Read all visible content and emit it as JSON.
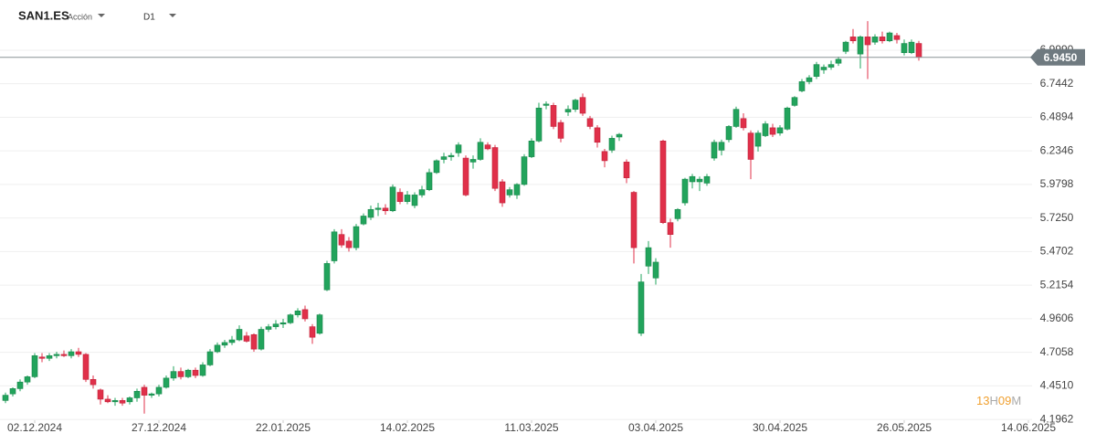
{
  "header": {
    "symbol": "SAN1.ES",
    "kind": "Acción",
    "timeframe": "D1"
  },
  "countdown": {
    "hours": "13",
    "h": "H",
    "minutes": "09",
    "m": "M"
  },
  "chart_data": {
    "type": "candlestick",
    "up_color": "#22a45c",
    "down_color": "#e0304a",
    "grid": true,
    "ylim": [
      4.19,
      7.38
    ],
    "yticks": [
      4.1962,
      {
        "value": 4.451,
        "label": "4.4510"
      },
      4.7058,
      4.9606,
      5.2154,
      5.4702,
      {
        "value": 5.725,
        "label": "5.7250"
      },
      5.9798,
      6.2346,
      6.4894,
      6.7442,
      {
        "value": 6.999,
        "label": "6.9990"
      }
    ],
    "xlim": [
      -0.75,
      140.5
    ],
    "xticks": [
      {
        "value": 4,
        "label": "02.12.2024"
      },
      {
        "value": 21,
        "label": "27.12.2024"
      },
      {
        "value": 38,
        "label": "22.01.2025"
      },
      {
        "value": 55,
        "label": "14.02.2025"
      },
      {
        "value": 72,
        "label": "11.03.2025"
      },
      {
        "value": 89,
        "label": "03.04.2025"
      },
      {
        "value": 106,
        "label": "30.04.2025"
      },
      {
        "value": 123,
        "label": "26.05.2025"
      },
      {
        "value": 140,
        "label": "14.06.2025"
      }
    ],
    "last_price": {
      "value": 6.945,
      "label": "6.9450"
    },
    "candles": [
      [
        4.34,
        4.4,
        4.32,
        4.38
      ],
      [
        4.39,
        4.44,
        4.37,
        4.43
      ],
      [
        4.43,
        4.5,
        4.41,
        4.48
      ],
      [
        4.48,
        4.53,
        4.46,
        4.52
      ],
      [
        4.52,
        4.7,
        4.51,
        4.68
      ],
      [
        4.67,
        4.7,
        4.63,
        4.66
      ],
      [
        4.66,
        4.7,
        4.64,
        4.68
      ],
      [
        4.68,
        4.71,
        4.66,
        4.69
      ],
      [
        4.69,
        4.72,
        4.67,
        4.68
      ],
      [
        4.68,
        4.73,
        4.66,
        4.71
      ],
      [
        4.71,
        4.74,
        4.67,
        4.69
      ],
      [
        4.69,
        4.7,
        4.48,
        4.5
      ],
      [
        4.5,
        4.53,
        4.43,
        4.46
      ],
      [
        4.42,
        4.43,
        4.31,
        4.35
      ],
      [
        4.35,
        4.38,
        4.32,
        4.33
      ],
      [
        4.33,
        4.36,
        4.3,
        4.34
      ],
      [
        4.34,
        4.36,
        4.3,
        4.32
      ],
      [
        4.33,
        4.37,
        4.31,
        4.36
      ],
      [
        4.36,
        4.43,
        4.33,
        4.41
      ],
      [
        4.44,
        4.46,
        4.24,
        4.38
      ],
      [
        4.38,
        4.4,
        4.36,
        4.39
      ],
      [
        4.39,
        4.46,
        4.37,
        4.44
      ],
      [
        4.44,
        4.53,
        4.43,
        4.51
      ],
      [
        4.51,
        4.6,
        4.49,
        4.56
      ],
      [
        4.56,
        4.59,
        4.5,
        4.52
      ],
      [
        4.52,
        4.58,
        4.51,
        4.57
      ],
      [
        4.57,
        4.59,
        4.51,
        4.53
      ],
      [
        4.53,
        4.63,
        4.52,
        4.61
      ],
      [
        4.61,
        4.73,
        4.6,
        4.71
      ],
      [
        4.71,
        4.78,
        4.7,
        4.76
      ],
      [
        4.76,
        4.8,
        4.74,
        4.78
      ],
      [
        4.78,
        4.83,
        4.76,
        4.8
      ],
      [
        4.8,
        4.91,
        4.79,
        4.88
      ],
      [
        4.83,
        4.86,
        4.78,
        4.79
      ],
      [
        4.84,
        4.85,
        4.71,
        4.73
      ],
      [
        4.73,
        4.9,
        4.72,
        4.88
      ],
      [
        4.88,
        4.92,
        4.86,
        4.9
      ],
      [
        4.9,
        4.95,
        4.88,
        4.92
      ],
      [
        4.92,
        4.96,
        4.89,
        4.93
      ],
      [
        4.93,
        5.0,
        4.92,
        4.99
      ],
      [
        4.99,
        5.04,
        4.97,
        5.02
      ],
      [
        5.03,
        5.06,
        4.94,
        4.96
      ],
      [
        4.9,
        4.92,
        4.77,
        4.82
      ],
      [
        4.85,
        5.0,
        4.84,
        4.99
      ],
      [
        5.18,
        5.4,
        5.17,
        5.38
      ],
      [
        5.4,
        5.64,
        5.38,
        5.62
      ],
      [
        5.6,
        5.64,
        5.5,
        5.52
      ],
      [
        5.55,
        5.58,
        5.47,
        5.5
      ],
      [
        5.5,
        5.68,
        5.48,
        5.66
      ],
      [
        5.68,
        5.76,
        5.67,
        5.74
      ],
      [
        5.73,
        5.82,
        5.71,
        5.79
      ],
      [
        5.79,
        5.84,
        5.74,
        5.8
      ],
      [
        5.8,
        5.83,
        5.75,
        5.78
      ],
      [
        5.78,
        5.98,
        5.77,
        5.96
      ],
      [
        5.92,
        5.95,
        5.83,
        5.85
      ],
      [
        5.85,
        5.93,
        5.83,
        5.9
      ],
      [
        5.82,
        5.92,
        5.8,
        5.9
      ],
      [
        5.9,
        5.97,
        5.88,
        5.94
      ],
      [
        5.94,
        6.1,
        5.93,
        6.07
      ],
      [
        6.07,
        6.17,
        6.06,
        6.16
      ],
      [
        6.17,
        6.22,
        6.14,
        6.19
      ],
      [
        6.19,
        6.22,
        6.16,
        6.2
      ],
      [
        6.22,
        6.3,
        6.19,
        6.28
      ],
      [
        6.18,
        6.2,
        5.89,
        5.9
      ],
      [
        6.15,
        6.2,
        6.1,
        6.17
      ],
      [
        6.17,
        6.33,
        6.16,
        6.3
      ],
      [
        6.28,
        6.3,
        6.24,
        6.25
      ],
      [
        6.26,
        6.28,
        5.93,
        5.95
      ],
      [
        6.0,
        6.02,
        5.81,
        5.84
      ],
      [
        5.9,
        5.96,
        5.88,
        5.94
      ],
      [
        5.9,
        5.99,
        5.87,
        5.98
      ],
      [
        5.98,
        6.21,
        5.97,
        6.19
      ],
      [
        6.19,
        6.33,
        6.18,
        6.31
      ],
      [
        6.31,
        6.6,
        6.3,
        6.56
      ],
      [
        6.58,
        6.61,
        6.55,
        6.59
      ],
      [
        6.58,
        6.6,
        6.4,
        6.42
      ],
      [
        6.45,
        6.47,
        6.3,
        6.33
      ],
      [
        6.53,
        6.58,
        6.5,
        6.55
      ],
      [
        6.55,
        6.63,
        6.53,
        6.62
      ],
      [
        6.64,
        6.67,
        6.5,
        6.52
      ],
      [
        6.48,
        6.5,
        6.4,
        6.42
      ],
      [
        6.41,
        6.43,
        6.26,
        6.3
      ],
      [
        6.23,
        6.25,
        6.11,
        6.16
      ],
      [
        6.24,
        6.35,
        6.22,
        6.33
      ],
      [
        6.34,
        6.37,
        6.31,
        6.36
      ],
      [
        6.15,
        6.17,
        5.99,
        6.03
      ],
      [
        5.92,
        5.93,
        5.38,
        5.5
      ],
      [
        4.85,
        5.3,
        4.83,
        5.24
      ],
      [
        5.36,
        5.55,
        5.3,
        5.5
      ],
      [
        5.27,
        5.42,
        5.22,
        5.39
      ],
      [
        6.31,
        6.32,
        5.68,
        5.69
      ],
      [
        5.69,
        5.72,
        5.5,
        5.6
      ],
      [
        5.72,
        5.8,
        5.7,
        5.79
      ],
      [
        5.84,
        6.03,
        5.82,
        6.02
      ],
      [
        6.0,
        6.06,
        5.95,
        6.04
      ],
      [
        6.0,
        6.04,
        5.93,
        6.02
      ],
      [
        5.99,
        6.06,
        5.97,
        6.04
      ],
      [
        6.18,
        6.32,
        6.16,
        6.3
      ],
      [
        6.24,
        6.32,
        6.2,
        6.3
      ],
      [
        6.32,
        6.43,
        6.3,
        6.42
      ],
      [
        6.42,
        6.57,
        6.41,
        6.55
      ],
      [
        6.48,
        6.52,
        6.39,
        6.41
      ],
      [
        6.37,
        6.39,
        6.02,
        6.17
      ],
      [
        6.27,
        6.39,
        6.23,
        6.37
      ],
      [
        6.35,
        6.46,
        6.34,
        6.44
      ],
      [
        6.41,
        6.44,
        6.34,
        6.36
      ],
      [
        6.37,
        6.43,
        6.35,
        6.41
      ],
      [
        6.4,
        6.57,
        6.39,
        6.56
      ],
      [
        6.58,
        6.65,
        6.57,
        6.64
      ],
      [
        6.69,
        6.78,
        6.68,
        6.76
      ],
      [
        6.76,
        6.81,
        6.74,
        6.79
      ],
      [
        6.8,
        6.91,
        6.78,
        6.89
      ],
      [
        6.85,
        6.89,
        6.82,
        6.87
      ],
      [
        6.87,
        6.92,
        6.85,
        6.89
      ],
      [
        6.9,
        6.95,
        6.88,
        6.93
      ],
      [
        6.99,
        7.07,
        6.97,
        7.06
      ],
      [
        7.1,
        7.16,
        7.05,
        7.07
      ],
      [
        6.97,
        7.11,
        6.86,
        7.1
      ],
      [
        7.1,
        7.22,
        6.78,
        7.04
      ],
      [
        7.06,
        7.12,
        7.04,
        7.1
      ],
      [
        7.1,
        7.14,
        7.05,
        7.07
      ],
      [
        7.07,
        7.14,
        7.06,
        7.13
      ],
      [
        7.11,
        7.13,
        7.05,
        7.08
      ],
      [
        6.98,
        7.08,
        6.96,
        7.05
      ],
      [
        6.98,
        7.08,
        6.97,
        7.06
      ],
      [
        7.05,
        7.07,
        6.92,
        6.945
      ]
    ]
  }
}
